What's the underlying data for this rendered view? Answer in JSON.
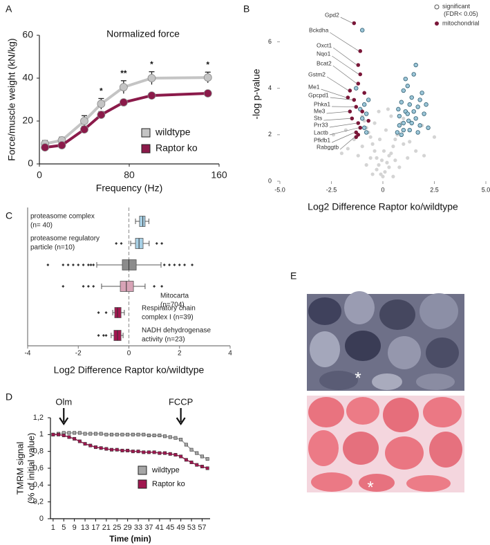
{
  "figure": {
    "panel_labels": [
      "A",
      "B",
      "C",
      "D",
      "E"
    ],
    "image_markers": [
      "*",
      "*"
    ]
  },
  "chart_data": [
    {
      "type": "line",
      "title": "Normalized force",
      "x_label": "Frequency (Hz)",
      "y_label": "Force/muscle weight (kN/kg)",
      "x": [
        5,
        20,
        40,
        55,
        75,
        100,
        150
      ],
      "series": [
        {
          "name": "wildtype",
          "color": "#c4c4c4",
          "values": [
            9.4,
            11,
            20,
            28,
            35.8,
            40,
            40.3
          ],
          "errors": [
            1.5,
            1.5,
            2.5,
            2.5,
            3,
            3,
            2.5
          ]
        },
        {
          "name": "Raptor ko",
          "color": "#8b1a4a",
          "values": [
            7.7,
            8.7,
            16.1,
            22.9,
            28.7,
            31.9,
            32.9
          ],
          "errors": [
            1,
            1,
            1.5,
            1.5,
            1,
            1,
            1
          ]
        }
      ],
      "xlim": [
        0,
        160
      ],
      "ylim": [
        0,
        60
      ],
      "xticks": [
        0,
        80,
        160
      ],
      "yticks": [
        0,
        20,
        40,
        60
      ],
      "annotations": [
        {
          "text": "*",
          "x": 55
        },
        {
          "text": "**",
          "x": 75
        },
        {
          "text": "*",
          "x": 100
        },
        {
          "text": "*",
          "x": 150
        }
      ]
    },
    {
      "type": "scatter",
      "x_label": "Log2 Difference Raptor ko/wildtype",
      "y_label": "-log p-value",
      "series": [
        {
          "name": null,
          "color": "#d4d4d4",
          "x": [
            -0.1,
            0.1,
            -0.2,
            0.2,
            -0.3,
            0.3,
            -0.4,
            0.4,
            -0.5,
            0.5,
            -0.6,
            0.6,
            -0.7,
            0.7,
            -0.8,
            0.8,
            -0.9,
            0.9,
            -1.0,
            1.0,
            -0.3,
            0.3,
            -0.6,
            0.6,
            -1.0,
            1.0,
            -1.4,
            1.3,
            -1.7,
            1.6,
            -2.0,
            2.0,
            -1.2,
            1.2,
            -0.8,
            0.8,
            0.0,
            -0.05,
            0.05,
            -0.15,
            0.15,
            -0.4,
            0.4,
            -0.2,
            0.25,
            -2.4,
            2.5,
            -1.8,
            1.9,
            -0.5,
            0.5
          ],
          "values": [
            0.3,
            0.4,
            0.7,
            0.8,
            1.0,
            1.1,
            1.3,
            1.2,
            1.6,
            1.5,
            1.9,
            1.8,
            2.1,
            2.0,
            2.3,
            2.4,
            2.6,
            2.5,
            2.8,
            2.7,
            0.5,
            0.6,
            1.0,
            0.9,
            1.5,
            1.6,
            1.8,
            1.7,
            1.4,
            1.3,
            1.2,
            1.1,
            1.1,
            1.0,
            0.7,
            0.6,
            0.2,
            0.9,
            1.3,
            1.8,
            2.2,
            2.5,
            2.8,
            3.0,
            3.1,
            2.0,
            1.9,
            2.2,
            2.4,
            0.3,
            0.2
          ]
        },
        {
          "name": "significant (FDR< 0.05)",
          "color": "#9cc6d8",
          "x": [
            0.7,
            0.8,
            0.9,
            1.0,
            1.1,
            1.2,
            1.3,
            1.4,
            1.5,
            1.6,
            1.7,
            1.8,
            1.9,
            2.0,
            2.2,
            1.0,
            0.8,
            1.2,
            1.4,
            1.6,
            0.9,
            1.1,
            1.3,
            1.7,
            2.1,
            0.75,
            1.5,
            1.8,
            1.0,
            1.25,
            -0.9,
            -0.8,
            -1.0,
            -0.7,
            -0.9,
            -1.1,
            -0.8,
            -1.3,
            -1.0
          ],
          "values": [
            2.1,
            2.8,
            3.4,
            2.5,
            3.0,
            4.1,
            2.2,
            3.6,
            4.6,
            2.7,
            3.2,
            2.4,
            3.8,
            2.9,
            2.3,
            3.9,
            2.4,
            2.9,
            2.5,
            5.0,
            2.0,
            4.4,
            3.3,
            2.1,
            3.3,
            3.1,
            3.0,
            3.5,
            2.2,
            2.6,
            3.3,
            2.9,
            2.7,
            3.5,
            2.3,
            3.1,
            2.1,
            4.0,
            6.5
          ]
        },
        {
          "name": "mitochondrial",
          "color": "#7a1638",
          "x": [
            -1.4,
            -1.1,
            -1.2,
            -1.1,
            -1.2,
            -1.6,
            -1.7,
            -1.4,
            -1.3,
            -1.6,
            -1.5,
            -1.2,
            -1.1,
            -1.3,
            -1.3,
            -0.9,
            -1.0,
            -0.7,
            -1.2
          ],
          "values": [
            6.8,
            5.6,
            5.0,
            4.6,
            4.2,
            3.9,
            3.6,
            3.5,
            3.2,
            3.0,
            2.7,
            2.5,
            2.3,
            2.1,
            1.9,
            3.8,
            3.0,
            2.6,
            2.0
          ],
          "point_labels": [
            "Gpd2",
            "Bckdha",
            "Oxct1",
            "Nqo1",
            "Bcat2",
            "Gstm2",
            "Me1",
            "Gpcpd1",
            "Phka1",
            "Me3",
            "Sts",
            "Prr33",
            "Lactb",
            "Pfkfb1",
            "Rabggtb",
            null,
            null,
            null,
            null
          ]
        }
      ],
      "xlim": [
        -5,
        5
      ],
      "ylim": [
        0,
        7.5
      ],
      "xticks": [
        {
          "value": -5,
          "label": "-5.0"
        },
        -2.5,
        0,
        2.5,
        {
          "value": 5,
          "label": "5.0"
        }
      ],
      "yticks": [
        0,
        2,
        4,
        6
      ]
    },
    {
      "type": "box",
      "x_label": "Log2 Difference Raptor ko/wildtype",
      "categories": [
        [
          "proteasome complex",
          "(n= 40)"
        ],
        [
          "proteasome regulatory",
          "particle (n=10)"
        ],
        null,
        [
          "Mitocarta",
          "(n=704)"
        ],
        [
          "Respiratory chain",
          "complex I (n=39)"
        ],
        [
          "NADH dehydrogenase",
          "activity (n=23)"
        ]
      ],
      "colors": [
        "#a8d1e6",
        "#a8d1e6",
        "#8c8c8c",
        "#d7a3b6",
        "#a3154f",
        "#a3154f"
      ],
      "whisker_low": [
        0.26,
        0.07,
        -1.27,
        -1.08,
        -0.64,
        -0.7
      ],
      "q1": [
        0.42,
        0.26,
        -0.26,
        -0.34,
        -0.56,
        -0.59
      ],
      "median": [
        0.55,
        0.4,
        0.0,
        -0.1,
        -0.45,
        -0.45
      ],
      "q3": [
        0.64,
        0.56,
        0.29,
        0.18,
        -0.31,
        -0.31
      ],
      "whisker_high": [
        0.79,
        0.8,
        1.27,
        0.64,
        -0.18,
        -0.23
      ],
      "outliers": [
        [],
        [
          -0.5,
          -0.3,
          1.1,
          1.3
        ],
        [
          -3.2,
          -2.6,
          -2.4,
          -2.2,
          -2.0,
          -1.8,
          -1.6,
          -1.5,
          -1.4,
          1.4,
          1.6,
          1.8,
          2.0,
          2.2,
          2.5
        ],
        [
          -2.6,
          -1.8,
          -1.6,
          -1.4,
          1.0,
          1.3
        ],
        [
          -1.2,
          -0.9
        ],
        [
          -1.2,
          -1.0,
          -0.9
        ]
      ],
      "xlim": [
        -4,
        4
      ],
      "xticks": [
        -4,
        -2,
        0,
        2,
        4
      ]
    },
    {
      "type": "line",
      "x_label": "Time (min)",
      "y_label": [
        "TMRM signal",
        "(% of initial value)"
      ],
      "x": [
        1,
        3,
        5,
        7,
        9,
        11,
        13,
        15,
        17,
        19,
        21,
        23,
        25,
        27,
        29,
        31,
        33,
        35,
        37,
        39,
        41,
        43,
        45,
        47,
        49,
        51,
        53,
        55,
        57,
        59
      ],
      "series": [
        {
          "name": "wildtype",
          "color": "#a6a6a6",
          "values": [
            1.0,
            1.01,
            1.02,
            1.02,
            1.02,
            1.02,
            1.01,
            1.01,
            1.01,
            1.01,
            1.0,
            1.0,
            1.0,
            1.0,
            1.0,
            1.0,
            1.0,
            1.0,
            0.99,
            0.99,
            0.99,
            0.98,
            0.97,
            0.96,
            0.94,
            0.88,
            0.82,
            0.78,
            0.74,
            0.71
          ]
        },
        {
          "name": "Raptor ko",
          "color": "#a0174f",
          "values": [
            1.0,
            1.0,
            0.99,
            0.97,
            0.95,
            0.92,
            0.89,
            0.87,
            0.85,
            0.84,
            0.83,
            0.82,
            0.82,
            0.81,
            0.81,
            0.8,
            0.8,
            0.79,
            0.79,
            0.79,
            0.78,
            0.78,
            0.77,
            0.76,
            0.74,
            0.7,
            0.67,
            0.64,
            0.62,
            0.6
          ]
        }
      ],
      "xlim": [
        0,
        60
      ],
      "ylim": [
        0,
        1.2
      ],
      "xticks": [
        1,
        5,
        9,
        13,
        17,
        21,
        25,
        29,
        33,
        37,
        41,
        45,
        49,
        53,
        57
      ],
      "yticks": [
        0,
        {
          "value": 0.2,
          "label": "0,2"
        },
        {
          "value": 0.4,
          "label": "0,4"
        },
        {
          "value": 0.6,
          "label": "0,6"
        },
        {
          "value": 0.8,
          "label": "0,8"
        },
        1,
        {
          "value": 1.2,
          "label": "1,2"
        }
      ],
      "annotations": [
        {
          "text": "Olm",
          "x": 5
        },
        {
          "text": "FCCP",
          "x": 49
        }
      ]
    }
  ]
}
